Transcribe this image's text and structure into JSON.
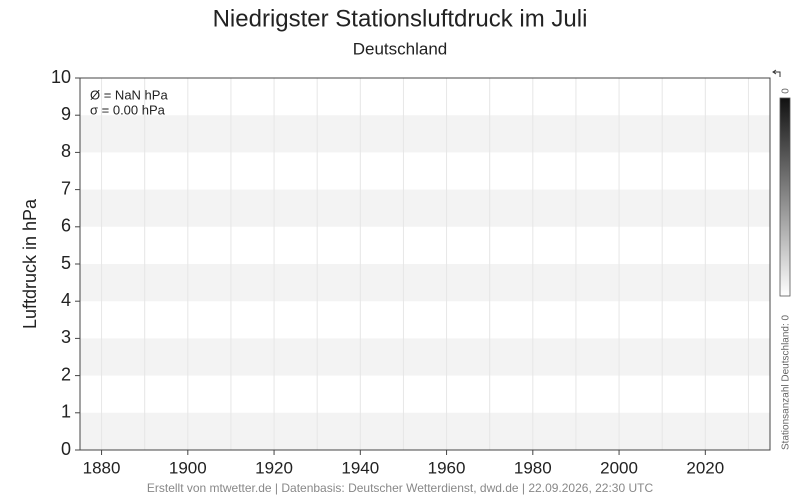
{
  "chart_data": {
    "type": "line",
    "title": "Niedrigster Stationsluftdruck im Juli",
    "subtitle": "Deutschland",
    "y_label": "Luftdruck in hPa",
    "x": [],
    "series": [],
    "xlim": [
      1875,
      2035
    ],
    "xticks": [
      1880,
      1900,
      1920,
      1940,
      1960,
      1980,
      2000,
      2020
    ],
    "xminorticks": [
      1890,
      1910,
      1930,
      1950,
      1970,
      1990,
      2010,
      2030
    ],
    "ylim": [
      0,
      10
    ],
    "yticks": [
      0,
      1,
      2,
      3,
      4,
      5,
      6,
      7,
      8,
      9,
      10
    ],
    "bands": true,
    "grid": true,
    "annotations": [
      "Ø = NaN hPa",
      "σ = 0.00 hPa"
    ],
    "colorbar": {
      "label": "Stationsanzahl Deutschland: 0",
      "ticks": [
        0
      ]
    },
    "footer": "Erstellt von mtwetter.de | Datenbasis: Deutscher Wetterdienst, dwd.de | 22.09.2026, 22:30 UTC"
  }
}
